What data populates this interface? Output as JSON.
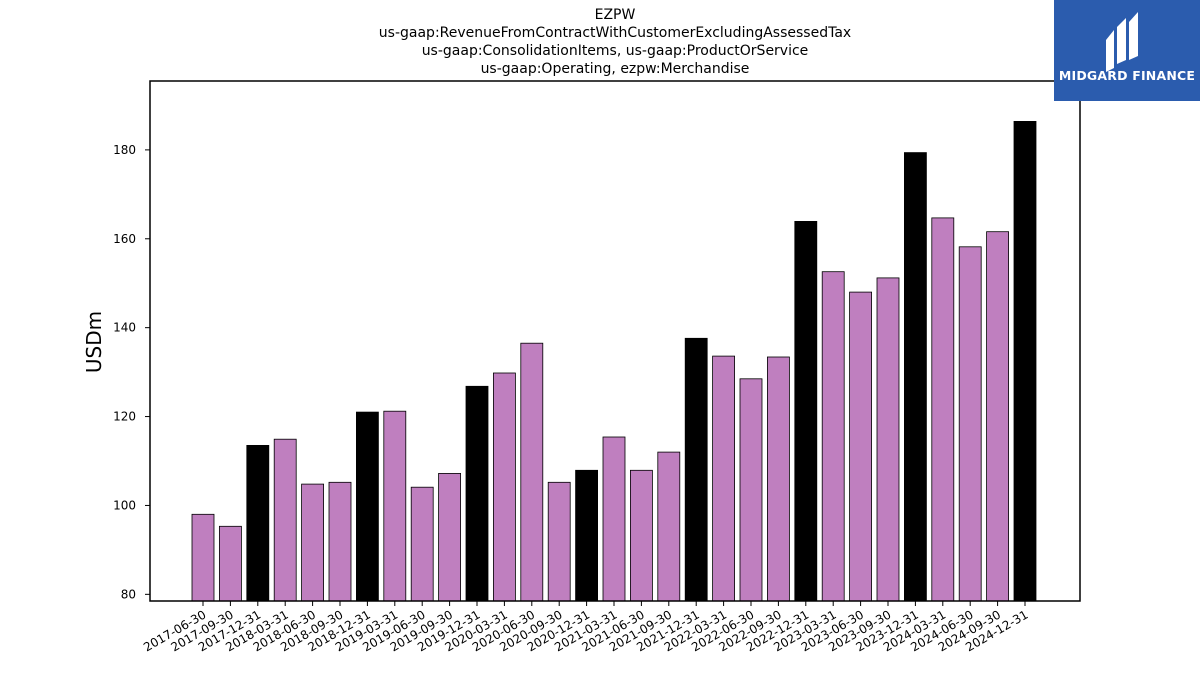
{
  "chart_data": {
    "type": "bar",
    "title_lines": [
      "EZPW",
      "us-gaap:RevenueFromContractWithCustomerExcludingAssessedTax",
      "us-gaap:ConsolidationItems, us-gaap:ProductOrService",
      "us-gaap:Operating, ezpw:Merchandise"
    ],
    "ylabel": "USDm",
    "xlabel": "",
    "ylim": [
      78.5,
      195.5
    ],
    "yticks": [
      80,
      100,
      120,
      140,
      160,
      180
    ],
    "categories": [
      "2017-06-30",
      "2017-09-30",
      "2017-12-31",
      "2018-03-31",
      "2018-06-30",
      "2018-09-30",
      "2018-12-31",
      "2019-03-31",
      "2019-06-30",
      "2019-09-30",
      "2019-12-31",
      "2020-03-31",
      "2020-06-30",
      "2020-09-30",
      "2020-12-31",
      "2021-03-31",
      "2021-06-30",
      "2021-09-30",
      "2021-12-31",
      "2022-03-31",
      "2022-06-30",
      "2022-09-30",
      "2022-12-31",
      "2023-03-31",
      "2023-06-30",
      "2023-09-30",
      "2023-12-31",
      "2024-03-31",
      "2024-06-30",
      "2024-09-30",
      "2024-12-31"
    ],
    "values": [
      98.0,
      95.3,
      113.5,
      114.9,
      104.8,
      105.2,
      121.0,
      121.2,
      104.1,
      107.2,
      126.8,
      129.8,
      136.5,
      105.2,
      107.9,
      115.4,
      107.9,
      112.0,
      137.6,
      133.6,
      128.5,
      133.4,
      163.9,
      152.6,
      148.0,
      151.2,
      179.4,
      164.7,
      158.2,
      161.6,
      186.4
    ],
    "highlight": [
      false,
      false,
      true,
      false,
      false,
      false,
      true,
      false,
      false,
      false,
      true,
      false,
      false,
      false,
      true,
      false,
      false,
      false,
      true,
      false,
      false,
      false,
      true,
      false,
      false,
      false,
      true,
      false,
      false,
      false,
      true
    ],
    "colors": {
      "default": "#bf7fbf",
      "highlight": "#000000",
      "edge": "#000000"
    },
    "grid": false,
    "legend": "none"
  },
  "logo": {
    "text": "MIDGARD FINANCE",
    "bg": "#2b5cae",
    "fg": "#ffffff"
  }
}
